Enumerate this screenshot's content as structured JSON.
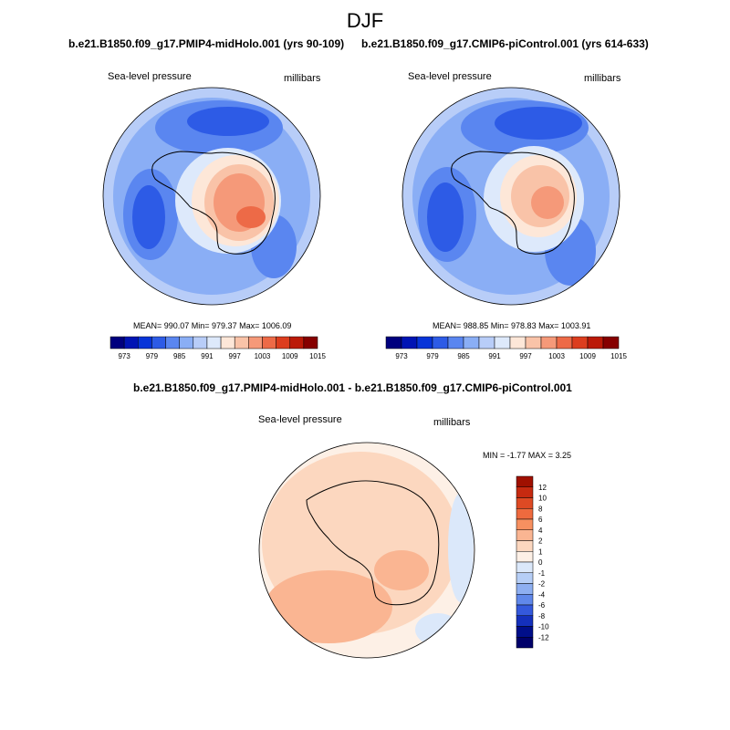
{
  "page_title": "DJF",
  "chart_data": [
    {
      "type": "heatmap",
      "title": "b.e21.B1850.f09_g17.PMIP4-midHolo.001 (yrs 90-109)",
      "left_label": "Sea-level pressure",
      "right_label": "millibars",
      "stats": {
        "mean": 990.07,
        "min": 979.37,
        "max": 1006.09
      },
      "stats_text": "MEAN= 990.07  Min= 979.37  Max= 1006.09",
      "colorbar_ticks": [
        "973",
        "979",
        "985",
        "991",
        "997",
        "1003",
        "1009",
        "1015"
      ],
      "colorbar_colors": [
        "#00007e",
        "#0014b4",
        "#0734d8",
        "#2d5be6",
        "#5a86f0",
        "#8aaef5",
        "#b8cdf8",
        "#dde9fb",
        "#fde7d8",
        "#f9c3a8",
        "#f59979",
        "#ed6a47",
        "#dc3d1e",
        "#bb1a08",
        "#860000"
      ]
    },
    {
      "type": "heatmap",
      "title": "b.e21.B1850.f09_g17.CMIP6-piControl.001 (yrs 614-633)",
      "left_label": "Sea-level pressure",
      "right_label": "millibars",
      "stats": {
        "mean": 988.85,
        "min": 978.83,
        "max": 1003.91
      },
      "stats_text": "MEAN= 988.85  Min= 978.83  Max= 1003.91",
      "colorbar_ticks": [
        "973",
        "979",
        "985",
        "991",
        "997",
        "1003",
        "1009",
        "1015"
      ],
      "colorbar_colors": [
        "#00007e",
        "#0014b4",
        "#0734d8",
        "#2d5be6",
        "#5a86f0",
        "#8aaef5",
        "#b8cdf8",
        "#dde9fb",
        "#fde7d8",
        "#f9c3a8",
        "#f59979",
        "#ed6a47",
        "#dc3d1e",
        "#bb1a08",
        "#860000"
      ]
    },
    {
      "type": "heatmap",
      "title": "b.e21.B1850.f09_g17.PMIP4-midHolo.001 - b.e21.B1850.f09_g17.CMIP6-piControl.001",
      "left_label": "Sea-level pressure",
      "right_label": "millibars",
      "stats": {
        "min": -1.77,
        "max": 3.25
      },
      "stats_text": "MIN =  -1.77 MAX =   3.25",
      "colorbar_ticks": [
        "12",
        "10",
        "8",
        "6",
        "4",
        "2",
        "1",
        "0",
        "-1",
        "-2",
        "-4",
        "-6",
        "-8",
        "-10",
        "-12"
      ],
      "colorbar_colors": [
        "#a01000",
        "#c62a10",
        "#de4a24",
        "#ee6a3e",
        "#f79060",
        "#fab592",
        "#fcd7bf",
        "#fdf0e6",
        "#dbe8fa",
        "#b6cef6",
        "#8eaff1",
        "#6088ea",
        "#3459dc",
        "#1430bc",
        "#000e8a",
        "#00006a"
      ]
    }
  ]
}
